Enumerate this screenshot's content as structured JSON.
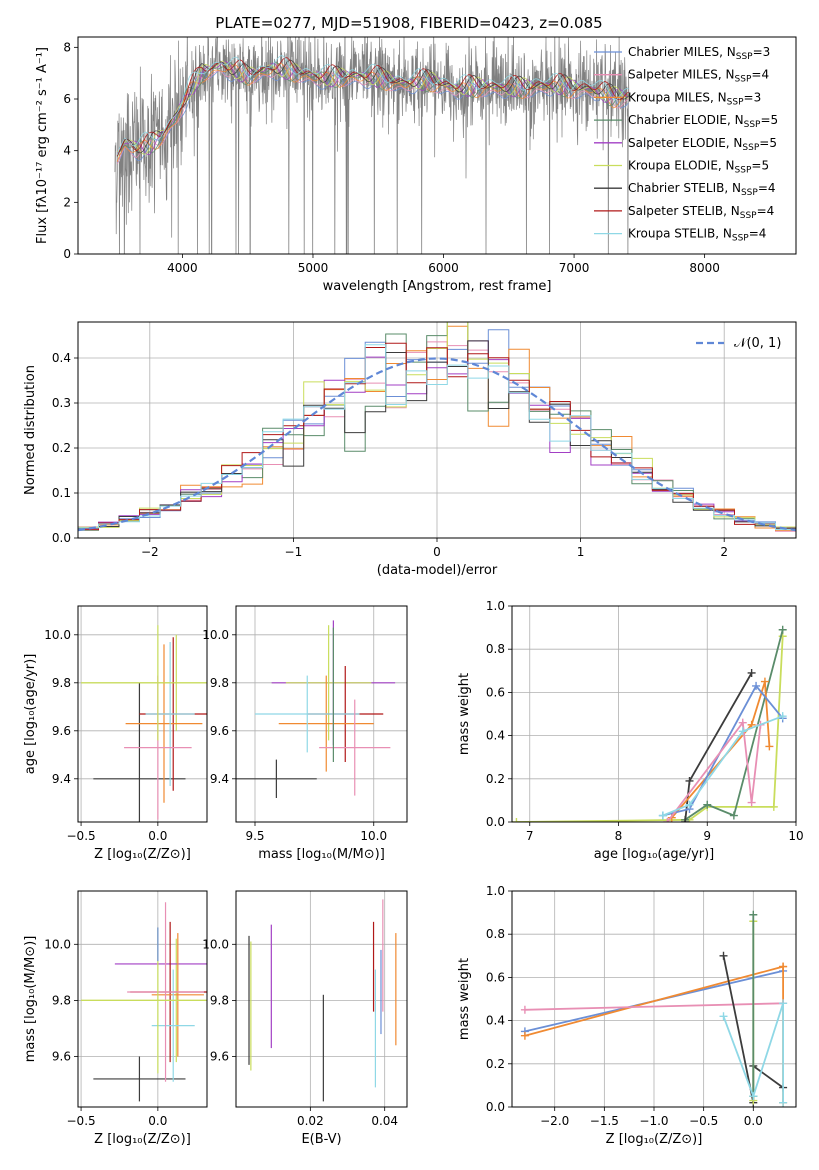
{
  "chart_data": [
    {
      "id": "spectrum",
      "type": "line",
      "title": "PLATE=0277, MJD=51908, FIBERID=0423, z=0.085",
      "xlabel": "wavelength [Angstrom, rest frame]",
      "ylabel": "Flux [fλ10⁻¹⁷ erg cm⁻² s⁻¹ A⁻¹]",
      "xlim": [
        3200,
        8700
      ],
      "ylim": [
        0,
        8.4
      ],
      "xticks": [
        4000,
        5000,
        6000,
        7000,
        8000
      ],
      "yticks": [
        0,
        2,
        4,
        6,
        8
      ],
      "grid": false,
      "legend_position": "top-right",
      "data_color": "#808080",
      "legend": [
        {
          "label": "Chabrier MILES, N",
          "sub": "SSP",
          "suffix": "=3",
          "color": "#6b8fd6"
        },
        {
          "label": "Salpeter MILES, N",
          "sub": "SSP",
          "suffix": "=4",
          "color": "#e88fb4"
        },
        {
          "label": "Kroupa MILES, N",
          "sub": "SSP",
          "suffix": "=3",
          "color": "#f08a32"
        },
        {
          "label": "Chabrier ELODIE, N",
          "sub": "SSP",
          "suffix": "=5",
          "color": "#5a8c6a"
        },
        {
          "label": "Salpeter ELODIE, N",
          "sub": "SSP",
          "suffix": "=5",
          "color": "#a23fc4"
        },
        {
          "label": "Kroupa ELODIE, N",
          "sub": "SSP",
          "suffix": "=5",
          "color": "#c9dd5c"
        },
        {
          "label": "Chabrier STELIB, N",
          "sub": "SSP",
          "suffix": "=4",
          "color": "#3c3c3c"
        },
        {
          "label": "Salpeter STELIB, N",
          "sub": "SSP",
          "suffix": "=4",
          "color": "#b01818"
        },
        {
          "label": "Kroupa STELIB, N",
          "sub": "SSP",
          "suffix": "=4",
          "color": "#8fd8e6"
        }
      ],
      "continuum": {
        "x": [
          3480,
          3560,
          3650,
          3750,
          3850,
          3950,
          4050,
          4150,
          4300,
          4500,
          4700,
          4900,
          5100,
          5300,
          5500,
          5700,
          5900,
          6100,
          6300,
          6500,
          6700,
          6900,
          7100,
          7300,
          7420
        ],
        "y": [
          3.6,
          4.3,
          4.1,
          4.2,
          4.6,
          5.3,
          6.3,
          7.0,
          7.3,
          6.9,
          7.2,
          7.0,
          6.8,
          6.9,
          6.8,
          6.6,
          6.7,
          6.4,
          6.5,
          6.4,
          6.5,
          6.5,
          6.4,
          6.1,
          6.1
        ]
      }
    },
    {
      "id": "residuals",
      "type": "line",
      "xlabel": "(data-model)/error",
      "ylabel": "Normed distribution",
      "xlim": [
        -2.5,
        2.5
      ],
      "ylim": [
        0,
        0.48
      ],
      "xticks": [
        -2,
        -1,
        0,
        1,
        2
      ],
      "yticks": [
        0.0,
        0.1,
        0.2,
        0.3,
        0.4
      ],
      "grid": true,
      "legend_position": "top-right",
      "legend": [
        {
          "label": "𝒩(0, 1)",
          "color": "#5f87d6"
        }
      ],
      "gaussian": {
        "mean": 0,
        "sigma": 1
      }
    },
    {
      "id": "age-vs-Z",
      "type": "scatter",
      "xlabel": "Z [log₁₀(Z/Z⊙)]",
      "ylabel": "age  [log₁₀(age/yr)]",
      "xlim": [
        -0.52,
        0.32
      ],
      "ylim": [
        9.22,
        10.12
      ],
      "xticks": [
        -0.5,
        0.0
      ],
      "yticks": [
        9.4,
        9.6,
        9.8,
        10.0
      ],
      "grid": true,
      "points": [
        {
          "x": 0.12,
          "y": 9.8,
          "xerr": 0.62,
          "yerr": 0.2,
          "color": "#c9dd5c"
        },
        {
          "x": -0.5,
          "y": 9.8,
          "xerr": 0.0,
          "yerr": 0.0,
          "color": "#5a8c6a"
        },
        {
          "x": -0.12,
          "y": 9.4,
          "xerr": 0.3,
          "yerr": 0.4,
          "color": "#3c3c3c"
        },
        {
          "x": 0.1,
          "y": 9.67,
          "xerr": 0.22,
          "yerr": 0.32,
          "color": "#b01818"
        },
        {
          "x": 0.04,
          "y": 9.63,
          "xerr": 0.25,
          "yerr": 0.33,
          "color": "#f08a32"
        },
        {
          "x": 0.08,
          "y": 9.67,
          "xerr": 0.16,
          "yerr": 0.3,
          "color": "#8fd8e6"
        },
        {
          "x": 0.0,
          "y": 9.53,
          "xerr": 0.22,
          "yerr": 0.3,
          "color": "#e88fb4"
        },
        {
          "x": 0.0,
          "y": 9.8,
          "xerr": 0.5,
          "yerr": 0.24,
          "color": "#c9dd5c"
        }
      ]
    },
    {
      "id": "age-vs-mass",
      "type": "scatter",
      "xlabel": "mass [log₁₀(M/M⊙)]",
      "ylabel": "",
      "xlim": [
        9.42,
        10.14
      ],
      "ylim": [
        9.22,
        10.12
      ],
      "xticks": [
        9.5,
        10.0
      ],
      "yticks": [
        9.4,
        9.6,
        9.8,
        10.0
      ],
      "grid": true,
      "points": [
        {
          "x": 9.83,
          "y": 9.8,
          "xerr": 0.26,
          "yerr": 0.26,
          "color": "#a23fc4"
        },
        {
          "x": 9.81,
          "y": 9.8,
          "xerr": 0.18,
          "yerr": 0.24,
          "color": "#c9dd5c"
        },
        {
          "x": 9.59,
          "y": 9.4,
          "xerr": 0.17,
          "yerr": 0.08,
          "color": "#3c3c3c"
        },
        {
          "x": 9.88,
          "y": 9.67,
          "xerr": 0.16,
          "yerr": 0.2,
          "color": "#b01818"
        },
        {
          "x": 9.8,
          "y": 9.63,
          "xerr": 0.2,
          "yerr": 0.2,
          "color": "#f08a32"
        },
        {
          "x": 9.72,
          "y": 9.67,
          "xerr": 0.22,
          "yerr": 0.16,
          "color": "#8fd8e6"
        },
        {
          "x": 9.92,
          "y": 9.53,
          "xerr": 0.15,
          "yerr": 0.2,
          "color": "#e88fb4"
        },
        {
          "x": 9.83,
          "y": 9.75,
          "xerr": 0.0,
          "yerr": 0.28,
          "color": "#5a8c6a"
        }
      ]
    },
    {
      "id": "massweight-vs-age",
      "type": "line",
      "xlabel": "age  [log₁₀(age/yr)]",
      "ylabel": "mass weight",
      "xlim": [
        6.8,
        10.0
      ],
      "ylim": [
        0.0,
        1.0
      ],
      "xticks": [
        7,
        8,
        9,
        10
      ],
      "yticks": [
        0.0,
        0.2,
        0.4,
        0.6,
        0.8,
        1.0
      ],
      "grid": true,
      "series": [
        {
          "color": "#c9dd5c",
          "x": [
            6.85,
            8.8,
            9.0,
            9.75,
            9.85
          ],
          "y": [
            0.0,
            0.01,
            0.07,
            0.07,
            0.86
          ]
        },
        {
          "color": "#5a8c6a",
          "x": [
            8.75,
            9.0,
            9.3,
            9.85
          ],
          "y": [
            0.01,
            0.08,
            0.03,
            0.89
          ]
        },
        {
          "color": "#3c3c3c",
          "x": [
            8.75,
            8.8,
            9.5
          ],
          "y": [
            0.0,
            0.19,
            0.69
          ]
        },
        {
          "color": "#f08a32",
          "x": [
            8.6,
            9.5,
            9.65,
            9.7
          ],
          "y": [
            0.02,
            0.45,
            0.65,
            0.35
          ]
        },
        {
          "color": "#6b8fd6",
          "x": [
            8.5,
            8.8,
            9.55,
            9.85
          ],
          "y": [
            0.03,
            0.06,
            0.63,
            0.48
          ]
        },
        {
          "color": "#e88fb4",
          "x": [
            8.55,
            9.4,
            9.5,
            9.6
          ],
          "y": [
            0.0,
            0.46,
            0.09,
            0.45
          ]
        },
        {
          "color": "#8fd8e6",
          "x": [
            8.5,
            8.8,
            9.4,
            9.85
          ],
          "y": [
            0.03,
            0.08,
            0.42,
            0.49
          ]
        }
      ]
    },
    {
      "id": "mass-vs-Z",
      "type": "scatter",
      "xlabel": "Z [log₁₀(Z/Z⊙)]",
      "ylabel": "mass [log₁₀(M/M⊙)]",
      "xlim": [
        -0.52,
        0.32
      ],
      "ylim": [
        9.42,
        10.19
      ],
      "xticks": [
        -0.5,
        0.0
      ],
      "yticks": [
        9.6,
        9.8,
        10.0
      ],
      "grid": true,
      "points": [
        {
          "x": 0.12,
          "y": 9.8,
          "xerr": 0.62,
          "yerr": 0.22,
          "color": "#c9dd5c"
        },
        {
          "x": 0.1,
          "y": 9.93,
          "xerr": 0.38,
          "yerr": 0.0,
          "color": "#a23fc4"
        },
        {
          "x": -0.12,
          "y": 9.52,
          "xerr": 0.3,
          "yerr": 0.08,
          "color": "#3c3c3c"
        },
        {
          "x": 0.08,
          "y": 9.83,
          "xerr": 0.26,
          "yerr": 0.25,
          "color": "#b01818"
        },
        {
          "x": 0.13,
          "y": 9.82,
          "xerr": 0.17,
          "yerr": 0.22,
          "color": "#f08a32"
        },
        {
          "x": 0.1,
          "y": 9.71,
          "xerr": 0.14,
          "yerr": 0.2,
          "color": "#8fd8e6"
        },
        {
          "x": 0.05,
          "y": 9.83,
          "xerr": 0.25,
          "yerr": 0.32,
          "color": "#e88fb4"
        },
        {
          "x": 0.0,
          "y": 9.8,
          "xerr": 0.5,
          "yerr": 0.26,
          "color": "#c9dd5c"
        },
        {
          "x": 0.0,
          "y": 10.0,
          "xerr": 0.0,
          "yerr": 0.06,
          "color": "#6b8fd6"
        }
      ]
    },
    {
      "id": "mass-vs-EBV",
      "type": "scatter",
      "xlabel": "E(B-V)",
      "ylabel": "",
      "xlim": [
        0.0,
        0.046
      ],
      "ylim": [
        9.42,
        10.19
      ],
      "xticks": [
        0.02,
        0.04
      ],
      "yticks": [
        9.6,
        9.8,
        10.0
      ],
      "grid": true,
      "points": [
        {
          "x": 0.0035,
          "y": 9.8,
          "xerr": 0,
          "yerr": 0.23,
          "color": "#3c3c3c"
        },
        {
          "x": 0.004,
          "y": 9.78,
          "xerr": 0,
          "yerr": 0.23,
          "color": "#c9dd5c"
        },
        {
          "x": 0.0095,
          "y": 9.85,
          "xerr": 0,
          "yerr": 0.22,
          "color": "#a23fc4"
        },
        {
          "x": 0.0235,
          "y": 9.63,
          "xerr": 0,
          "yerr": 0.19,
          "color": "#3c3c3c"
        },
        {
          "x": 0.037,
          "y": 9.92,
          "xerr": 0,
          "yerr": 0.16,
          "color": "#b01818"
        },
        {
          "x": 0.0375,
          "y": 9.7,
          "xerr": 0,
          "yerr": 0.21,
          "color": "#8fd8e6"
        },
        {
          "x": 0.039,
          "y": 9.83,
          "xerr": 0,
          "yerr": 0.15,
          "color": "#6b8fd6"
        },
        {
          "x": 0.0395,
          "y": 9.96,
          "xerr": 0,
          "yerr": 0.2,
          "color": "#e88fb4"
        },
        {
          "x": 0.043,
          "y": 9.84,
          "xerr": 0,
          "yerr": 0.2,
          "color": "#f08a32"
        }
      ]
    },
    {
      "id": "massweight-vs-Z",
      "type": "line",
      "xlabel": "Z [log₁₀(Z/Z⊙)]",
      "ylabel": "mass weight",
      "xlim": [
        -2.43,
        0.43
      ],
      "ylim": [
        0.0,
        1.0
      ],
      "xticks": [
        -2.0,
        -1.5,
        -1.0,
        -0.5,
        0.0
      ],
      "yticks": [
        0.0,
        0.2,
        0.4,
        0.6,
        0.8,
        1.0
      ],
      "grid": true,
      "series": [
        {
          "color": "#6b8fd6",
          "x": [
            -2.3,
            0.3
          ],
          "y": [
            0.35,
            0.63
          ]
        },
        {
          "color": "#f08a32",
          "x": [
            -2.3,
            0.3,
            0.3,
            0.3
          ],
          "y": [
            0.33,
            0.65,
            0.02,
            0.65
          ]
        },
        {
          "color": "#e88fb4",
          "x": [
            -2.3,
            0.3
          ],
          "y": [
            0.45,
            0.48
          ]
        },
        {
          "color": "#3c3c3c",
          "x": [
            -0.3,
            0.0,
            0.0,
            0.3
          ],
          "y": [
            0.7,
            0.02,
            0.19,
            0.09
          ]
        },
        {
          "color": "#c9dd5c",
          "x": [
            0.0,
            0.0
          ],
          "y": [
            0.03,
            0.86
          ]
        },
        {
          "color": "#5a8c6a",
          "x": [
            0.0,
            0.0
          ],
          "y": [
            0.05,
            0.89
          ]
        },
        {
          "color": "#8fd8e6",
          "x": [
            -0.3,
            0.0,
            0.3,
            0.3
          ],
          "y": [
            0.42,
            0.05,
            0.48,
            0.02
          ]
        }
      ]
    }
  ]
}
